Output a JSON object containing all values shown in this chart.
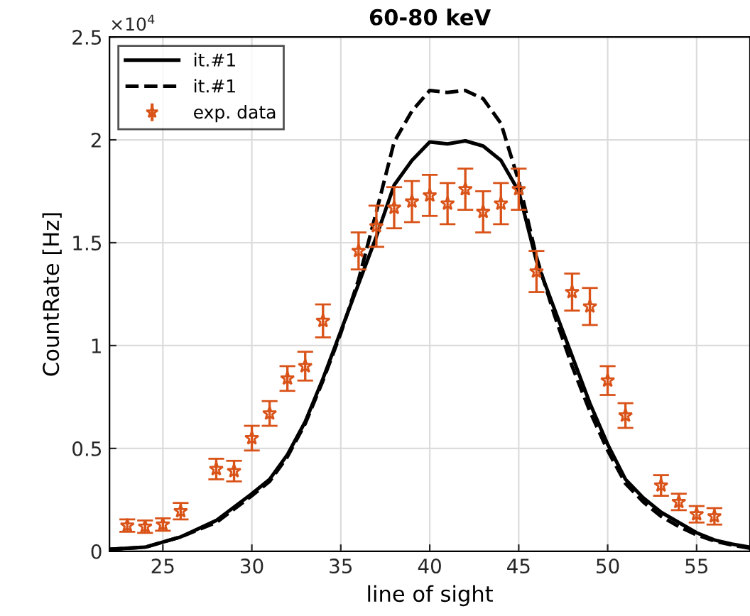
{
  "chart_data": {
    "type": "line",
    "title": "60-80 keV",
    "xlabel": "line of sight",
    "ylabel": "CountRate [Hz]",
    "annotations": [
      "×10$^{4}$"
    ],
    "xlim": [
      22,
      58
    ],
    "xticks": [
      25,
      30,
      35,
      40,
      45,
      50,
      55
    ],
    "ylim": [
      0,
      2.5
    ],
    "yticks": [
      0,
      0.5,
      1,
      1.5,
      2,
      2.5
    ],
    "grid": true,
    "legend": "top left",
    "series": [
      {
        "name": "it.#1",
        "color": "#000000",
        "line_style": "solid",
        "x": [
          22,
          24,
          26,
          28,
          30,
          31,
          32,
          33,
          34,
          35,
          36,
          37,
          38,
          39,
          40,
          41,
          42,
          43,
          44,
          45,
          46,
          47,
          48,
          49,
          50,
          51,
          52,
          53,
          54,
          55,
          56,
          57,
          58
        ],
        "values": [
          0.01,
          0.02,
          0.07,
          0.15,
          0.28,
          0.35,
          0.47,
          0.63,
          0.84,
          1.07,
          1.3,
          1.53,
          1.78,
          1.9,
          1.99,
          1.98,
          1.995,
          1.97,
          1.9,
          1.75,
          1.41,
          1.18,
          0.95,
          0.72,
          0.52,
          0.35,
          0.26,
          0.19,
          0.14,
          0.09,
          0.055,
          0.035,
          0.02
        ]
      },
      {
        "name": "it.#1",
        "color": "#000000",
        "line_style": "dashed",
        "x": [
          22,
          24,
          26,
          28,
          30,
          31,
          32,
          33,
          34,
          35,
          36,
          37,
          38,
          39,
          40,
          41,
          42,
          43,
          44,
          45,
          46,
          47,
          48,
          49,
          50,
          51,
          52,
          53,
          54,
          55,
          56,
          57,
          58
        ],
        "values": [
          0.01,
          0.02,
          0.07,
          0.14,
          0.27,
          0.34,
          0.46,
          0.62,
          0.83,
          1.06,
          1.32,
          1.65,
          1.99,
          2.14,
          2.24,
          2.23,
          2.24,
          2.2,
          2.08,
          1.8,
          1.43,
          1.15,
          0.9,
          0.68,
          0.49,
          0.33,
          0.24,
          0.17,
          0.12,
          0.08,
          0.05,
          0.03,
          0.015
        ]
      },
      {
        "name": "exp. data",
        "type": "scatter",
        "color": "#d95319",
        "marker": "star",
        "x": [
          23,
          24,
          25,
          26,
          28,
          29,
          30,
          31,
          32,
          33,
          34,
          36,
          37,
          38,
          39,
          40,
          41,
          42,
          43,
          44,
          45,
          46,
          48,
          49,
          50,
          51,
          53,
          54,
          55,
          56
        ],
        "values": [
          0.125,
          0.12,
          0.13,
          0.195,
          0.4,
          0.39,
          0.55,
          0.67,
          0.84,
          0.9,
          1.12,
          1.46,
          1.58,
          1.67,
          1.7,
          1.73,
          1.69,
          1.76,
          1.65,
          1.69,
          1.76,
          1.36,
          1.26,
          1.19,
          0.83,
          0.66,
          0.32,
          0.24,
          0.18,
          0.17
        ],
        "errors": [
          0.03,
          0.03,
          0.03,
          0.04,
          0.05,
          0.05,
          0.06,
          0.06,
          0.06,
          0.07,
          0.08,
          0.09,
          0.1,
          0.1,
          0.1,
          0.1,
          0.1,
          0.1,
          0.1,
          0.1,
          0.1,
          0.1,
          0.09,
          0.09,
          0.07,
          0.06,
          0.05,
          0.04,
          0.04,
          0.04
        ]
      }
    ]
  }
}
